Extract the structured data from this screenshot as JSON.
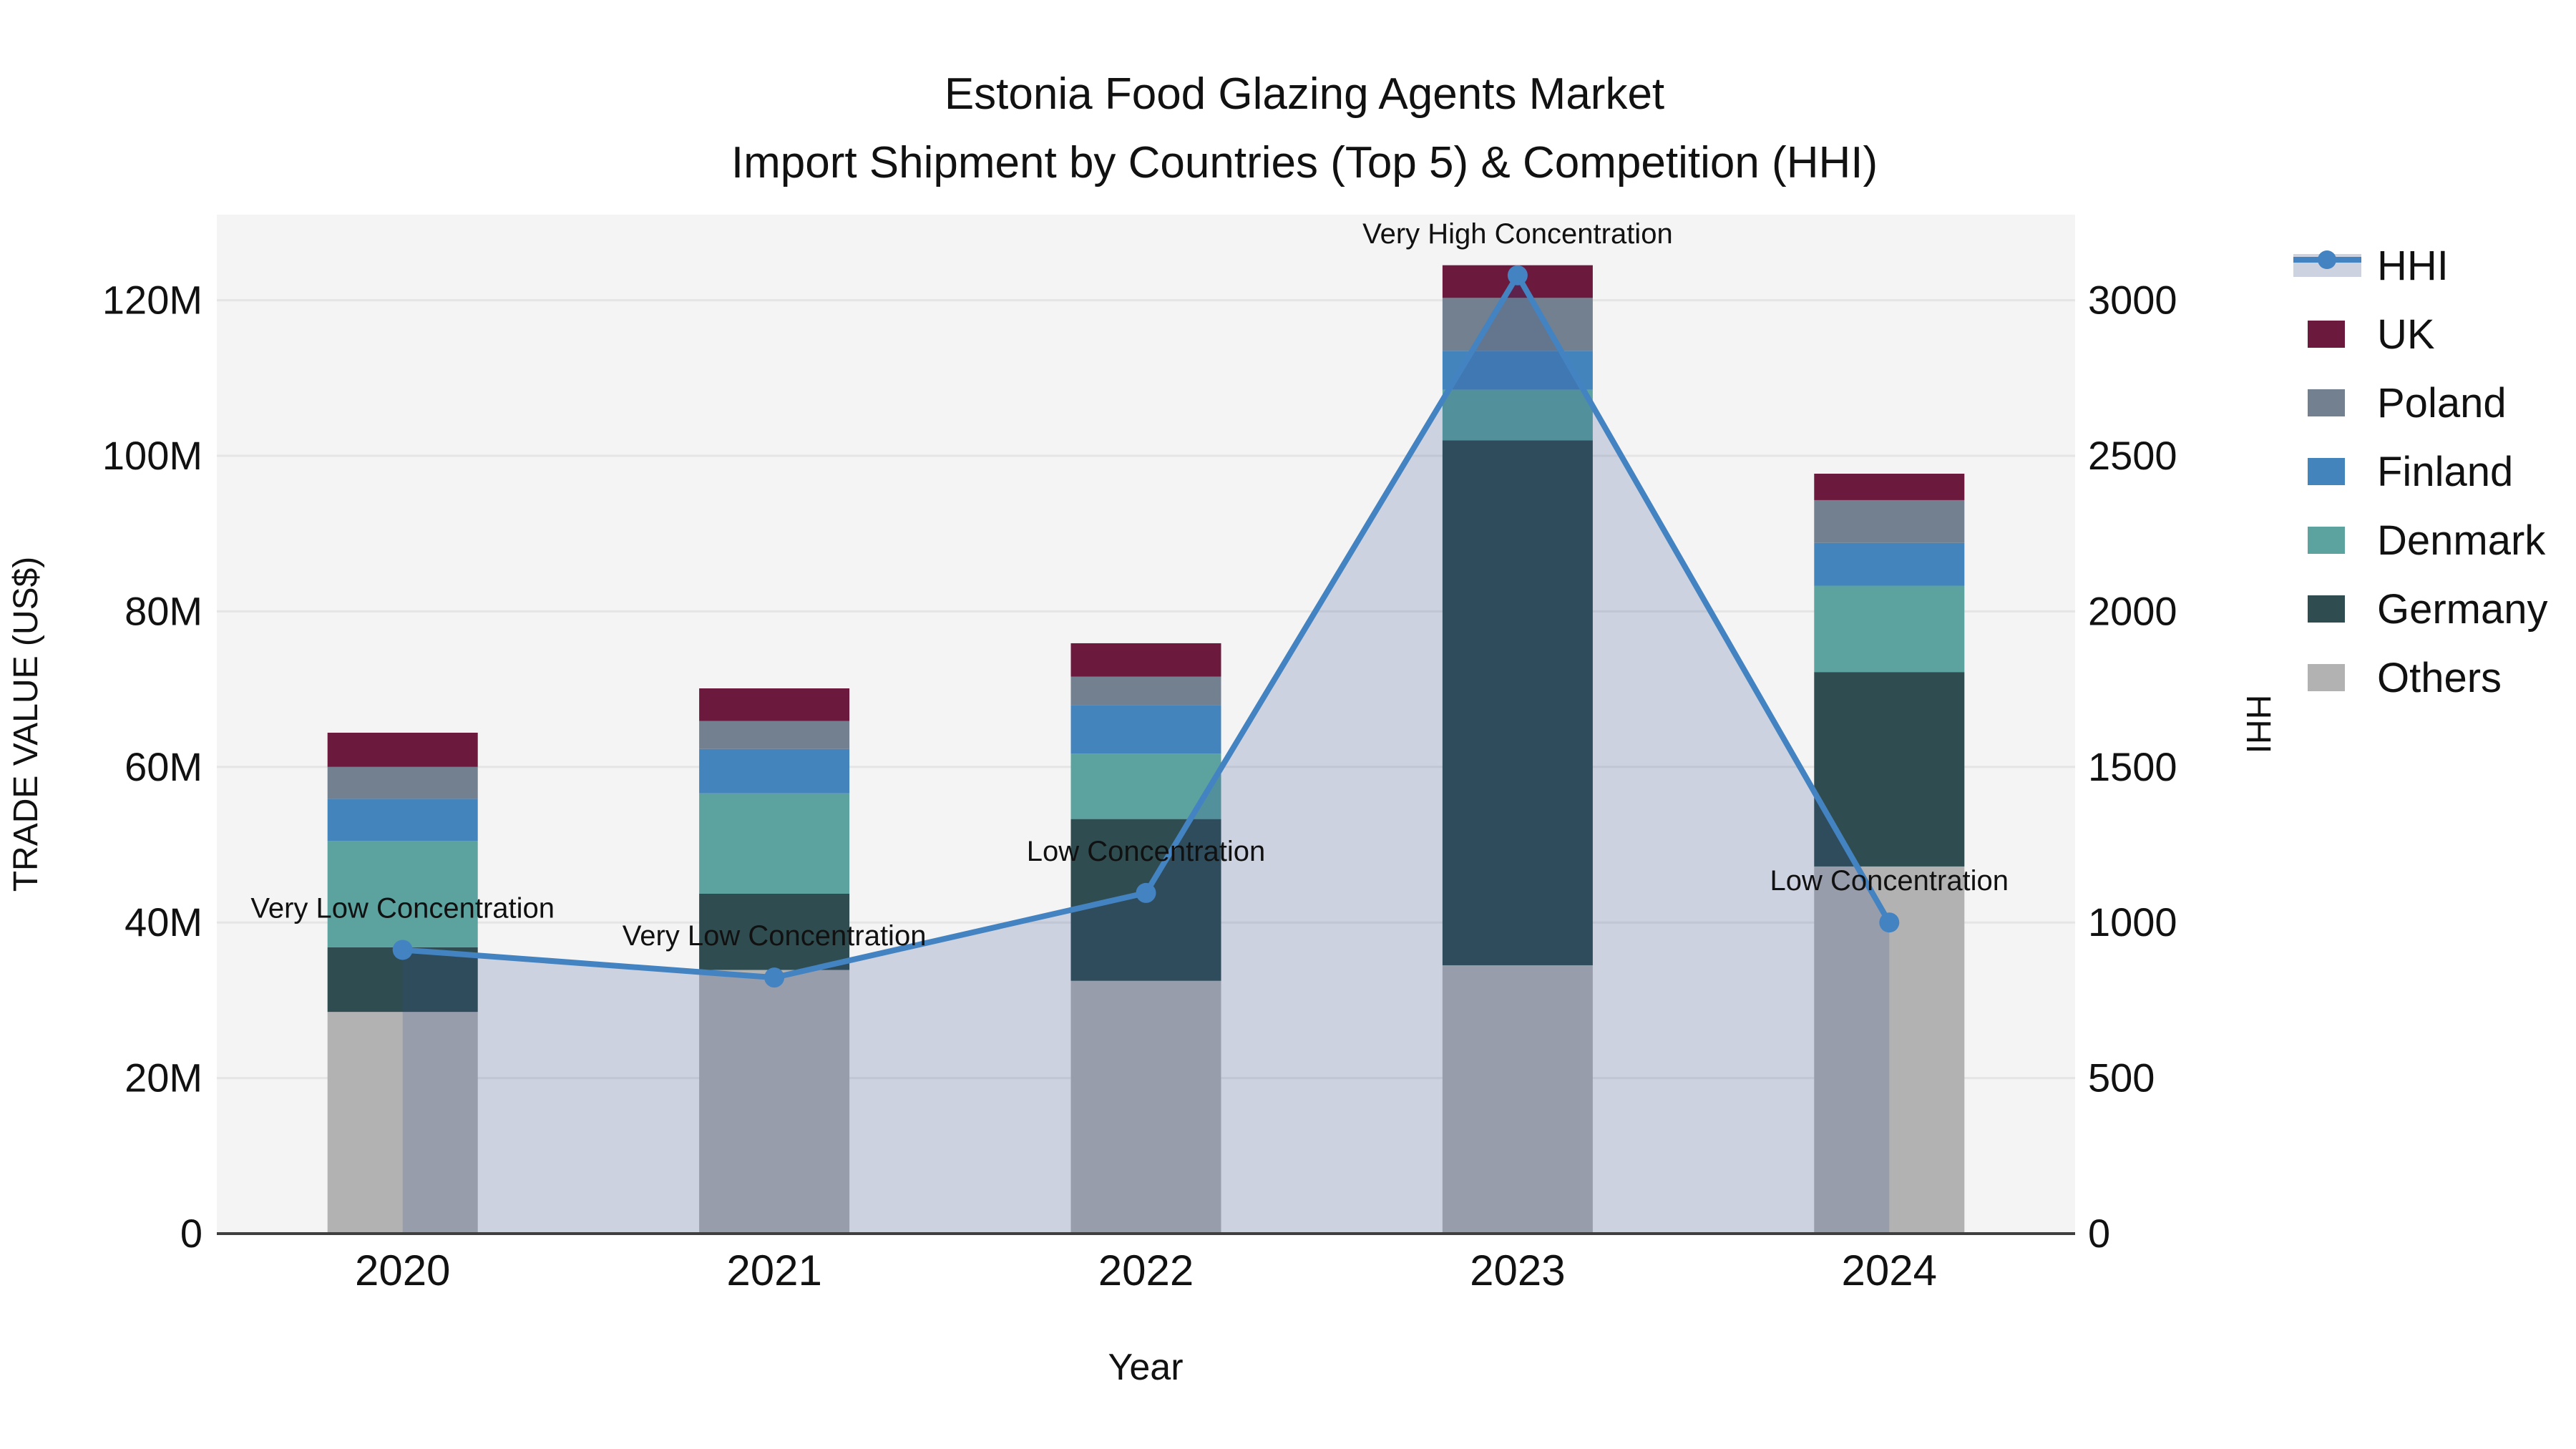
{
  "title": {
    "line1": "Estonia Food Glazing Agents Market",
    "line2": "Import Shipment by Countries (Top 5) & Competition (HHI)"
  },
  "colors": {
    "page_bg": "#ffffff",
    "plot_bg": "#f4f4f4",
    "grid": "#e5e5e5",
    "axis_line": "#3f3f3f",
    "text": "#111111",
    "hhi_line": "#4483c1",
    "hhi_area_fill": "rgba(43,74,140,0.2)",
    "hhi_legend_band": "#ccd2df"
  },
  "chart_data": {
    "type": "bar",
    "subtype": "stacked-bars-with-line-on-secondary-axis",
    "title": "Estonia Food Glazing Agents Market",
    "subtitle": "Import Shipment by Countries (Top 5) & Competition (HHI)",
    "categories": [
      "2020",
      "2021",
      "2022",
      "2023",
      "2024"
    ],
    "value_unit": "M US$",
    "series": [
      {
        "name": "Others",
        "color": "#b3b2b3",
        "values": [
          28.5,
          33.9,
          32.5,
          34.5,
          47.2
        ]
      },
      {
        "name": "Germany",
        "color": "#2f4d50",
        "values": [
          8.3,
          9.8,
          20.8,
          67.5,
          25.0
        ]
      },
      {
        "name": "Denmark",
        "color": "#5ca3a0",
        "values": [
          13.7,
          12.9,
          8.4,
          6.5,
          11.1
        ]
      },
      {
        "name": "Finland",
        "color": "#4484bd",
        "values": [
          5.4,
          5.7,
          6.2,
          5.0,
          5.5
        ]
      },
      {
        "name": "Poland",
        "color": "#72808f",
        "values": [
          4.1,
          3.6,
          3.7,
          6.8,
          5.5
        ]
      },
      {
        "name": "UK",
        "color": "#6b1a3d",
        "values": [
          4.4,
          4.2,
          4.3,
          4.2,
          3.4
        ]
      }
    ],
    "stack_totals": [
      64.4,
      70.1,
      75.9,
      124.5,
      97.7
    ],
    "line_series": {
      "name": "HHI",
      "color": "#4483c1",
      "marker": "circle",
      "area_fill": "rgba(43,74,140,0.2)",
      "values": [
        912,
        823,
        1095,
        3080,
        1000
      ]
    },
    "annotations": [
      {
        "category": "2020",
        "text": "Very Low Concentration"
      },
      {
        "category": "2021",
        "text": "Very Low Concentration"
      },
      {
        "category": "2022",
        "text": "Low Concentration"
      },
      {
        "category": "2023",
        "text": "Very High Concentration"
      },
      {
        "category": "2024",
        "text": "Low Concentration"
      }
    ],
    "xlabel": "Year",
    "ylabel": "TRADE VALUE (US$)",
    "y2label": "HHI",
    "ylim": [
      0,
      131
    ],
    "y2lim": [
      0,
      3275
    ],
    "yticks": [
      {
        "v": 0,
        "label": "0"
      },
      {
        "v": 20,
        "label": "20M"
      },
      {
        "v": 40,
        "label": "40M"
      },
      {
        "v": 60,
        "label": "60M"
      },
      {
        "v": 80,
        "label": "80M"
      },
      {
        "v": 100,
        "label": "100M"
      },
      {
        "v": 120,
        "label": "120M"
      }
    ],
    "y2ticks": [
      {
        "v": 0,
        "label": "0"
      },
      {
        "v": 500,
        "label": "500"
      },
      {
        "v": 1000,
        "label": "1000"
      },
      {
        "v": 1500,
        "label": "1500"
      },
      {
        "v": 2000,
        "label": "2000"
      },
      {
        "v": 2500,
        "label": "2500"
      },
      {
        "v": 3000,
        "label": "3000"
      }
    ],
    "grid": true,
    "legend_position": "right",
    "legend_order": [
      "HHI",
      "UK",
      "Poland",
      "Finland",
      "Denmark",
      "Germany",
      "Others"
    ]
  }
}
